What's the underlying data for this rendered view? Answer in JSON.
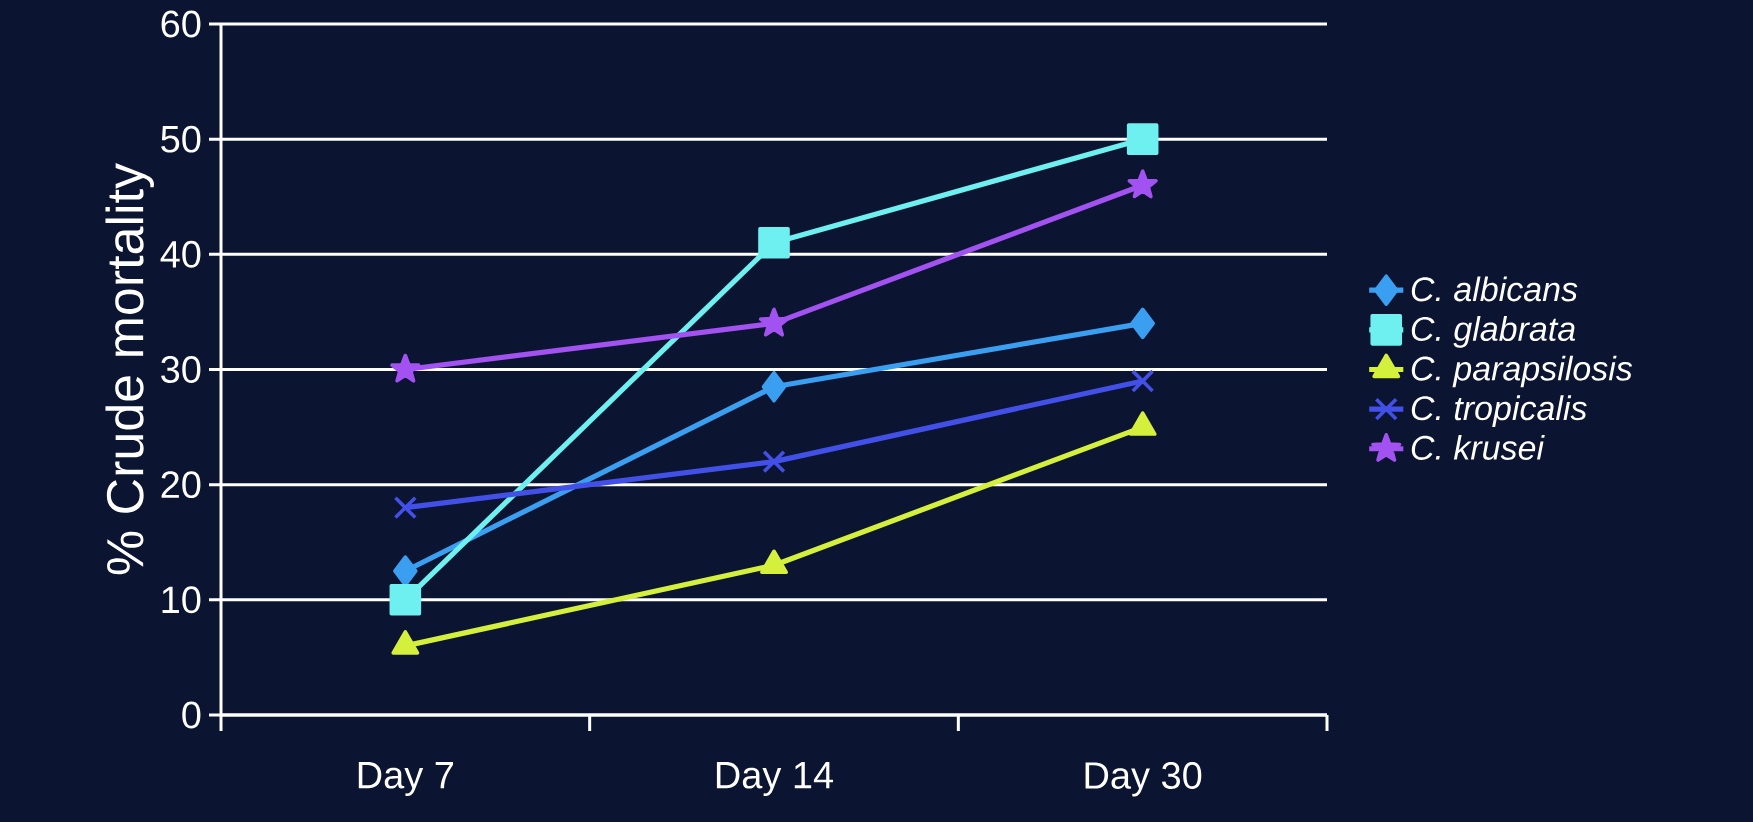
{
  "chart_data": {
    "type": "line",
    "ylabel": "% Crude mortality",
    "categories": [
      "Day 7",
      "Day 14",
      "Day 30"
    ],
    "series": [
      {
        "name": "C. albicans",
        "color": "#3a9ff0",
        "marker": "diamond",
        "values": [
          12.5,
          28.5,
          34
        ]
      },
      {
        "name": "C. glabrata",
        "color": "#6ef0f0",
        "marker": "square",
        "values": [
          10,
          41,
          50
        ]
      },
      {
        "name": "C. parapsilosis",
        "color": "#d4f03c",
        "marker": "triangle",
        "values": [
          6,
          13,
          25
        ]
      },
      {
        "name": "C. tropicalis",
        "color": "#4250e8",
        "marker": "cross",
        "values": [
          18,
          22,
          29
        ]
      },
      {
        "name": "C. krusei",
        "color": "#a252f0",
        "marker": "star",
        "values": [
          30,
          34,
          46
        ]
      }
    ],
    "ylim": [
      0,
      60
    ],
    "yticks": [
      0,
      10,
      20,
      30,
      40,
      50,
      60
    ],
    "grid": "y",
    "legend": "right"
  }
}
